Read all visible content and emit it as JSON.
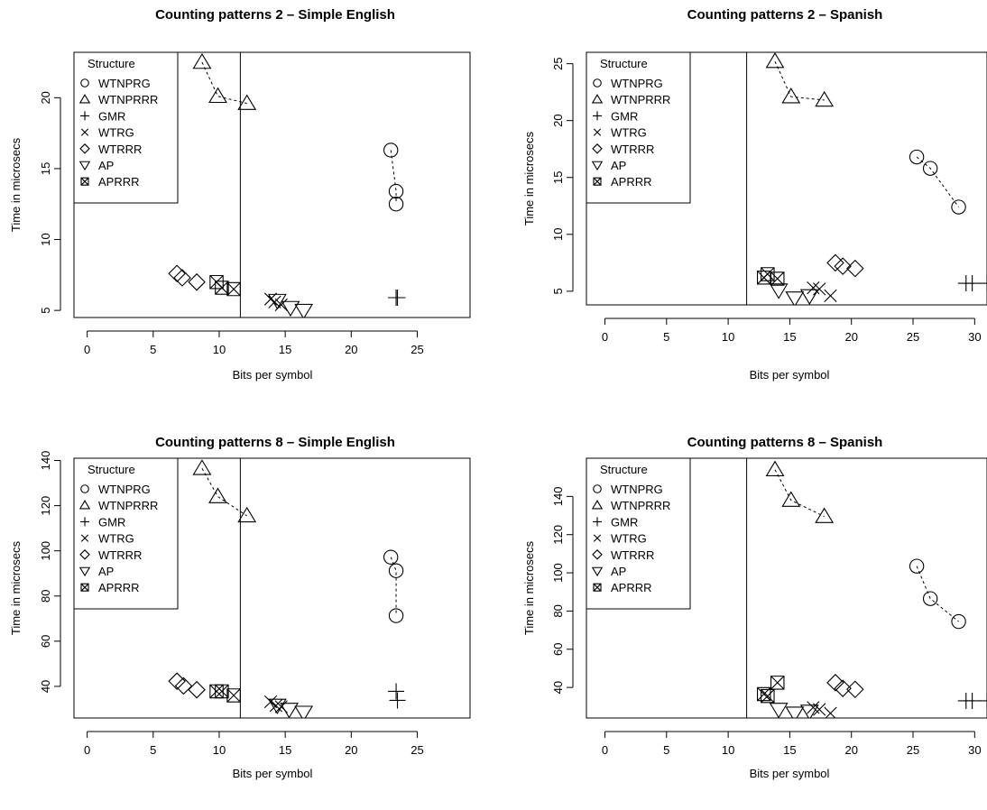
{
  "figure": {
    "background": "#ffffff",
    "marker_color": "#000000",
    "legend_title": "Structure",
    "legend_entries": [
      {
        "label": "WTNPRG",
        "symbol": "circle"
      },
      {
        "label": "WTNPRRR",
        "symbol": "triangle-up"
      },
      {
        "label": "GMR",
        "symbol": "plus"
      },
      {
        "label": "WTRG",
        "symbol": "cross"
      },
      {
        "label": "WTRRR",
        "symbol": "diamond"
      },
      {
        "label": "AP",
        "symbol": "triangle-down"
      },
      {
        "label": "APRRR",
        "symbol": "boxed-x"
      }
    ]
  },
  "chart_data": [
    {
      "type": "scatter",
      "title": "Counting patterns 2 – Simple English",
      "xlabel": "Bits per symbol",
      "ylabel": "Time in microsecs",
      "xlim": [
        -1,
        29
      ],
      "ylim": [
        4.5,
        23.2
      ],
      "xticks": [
        0,
        5,
        10,
        15,
        20,
        25
      ],
      "yticks": [
        5,
        10,
        15,
        20
      ],
      "vline": 11.6,
      "grid": false,
      "legend_position": "top-left",
      "series": [
        {
          "name": "WTNPRG",
          "symbol": "circle",
          "connected": true,
          "points": [
            [
              23.0,
              16.3
            ],
            [
              23.4,
              13.4
            ],
            [
              23.4,
              12.5
            ]
          ]
        },
        {
          "name": "WTNPRRR",
          "symbol": "triangle-up",
          "connected": true,
          "points": [
            [
              8.7,
              22.5
            ],
            [
              9.9,
              20.1
            ],
            [
              12.1,
              19.6
            ]
          ]
        },
        {
          "name": "GMR",
          "symbol": "plus",
          "connected": false,
          "points": [
            [
              23.4,
              5.9
            ],
            [
              23.5,
              5.9
            ]
          ]
        },
        {
          "name": "WTRG",
          "symbol": "cross",
          "connected": false,
          "points": [
            [
              13.9,
              5.8
            ],
            [
              14.2,
              5.6
            ],
            [
              14.7,
              5.4
            ]
          ]
        },
        {
          "name": "WTRRR",
          "symbol": "diamond",
          "connected": false,
          "points": [
            [
              6.8,
              7.6
            ],
            [
              7.2,
              7.3
            ],
            [
              8.3,
              7.0
            ]
          ]
        },
        {
          "name": "AP",
          "symbol": "triangle-down",
          "connected": false,
          "points": [
            [
              14.4,
              5.7
            ],
            [
              15.4,
              5.2
            ],
            [
              16.4,
              5.0
            ]
          ]
        },
        {
          "name": "APRRR",
          "symbol": "boxed-x",
          "connected": false,
          "points": [
            [
              9.8,
              7.0
            ],
            [
              10.2,
              6.6
            ],
            [
              11.1,
              6.5
            ]
          ]
        }
      ]
    },
    {
      "type": "scatter",
      "title": "Counting patterns 2 – Spanish",
      "xlabel": "Bits per symbol",
      "ylabel": "Time in microsecs",
      "xlim": [
        -1.5,
        31.0
      ],
      "ylim": [
        3.8,
        26.0
      ],
      "xticks": [
        0,
        5,
        10,
        15,
        20,
        25,
        30
      ],
      "yticks": [
        5,
        10,
        15,
        20,
        25
      ],
      "vline": 11.5,
      "grid": false,
      "legend_position": "top-left",
      "series": [
        {
          "name": "WTNPRG",
          "symbol": "circle",
          "connected": true,
          "points": [
            [
              25.3,
              16.8
            ],
            [
              26.4,
              15.8
            ],
            [
              28.7,
              12.4
            ]
          ]
        },
        {
          "name": "WTNPRRR",
          "symbol": "triangle-up",
          "connected": true,
          "points": [
            [
              13.8,
              25.2
            ],
            [
              15.1,
              22.1
            ],
            [
              17.8,
              21.8
            ]
          ]
        },
        {
          "name": "GMR",
          "symbol": "plus",
          "connected": false,
          "points": [
            [
              29.3,
              5.7
            ],
            [
              29.8,
              5.7
            ],
            [
              31.0,
              5.7
            ]
          ]
        },
        {
          "name": "WTRG",
          "symbol": "cross",
          "connected": false,
          "points": [
            [
              16.9,
              5.3
            ],
            [
              17.4,
              5.2
            ],
            [
              18.3,
              4.6
            ]
          ]
        },
        {
          "name": "WTRRR",
          "symbol": "diamond",
          "connected": false,
          "points": [
            [
              18.7,
              7.5
            ],
            [
              19.3,
              7.2
            ],
            [
              20.3,
              7.0
            ]
          ]
        },
        {
          "name": "AP",
          "symbol": "triangle-down",
          "connected": false,
          "points": [
            [
              14.1,
              5.1
            ],
            [
              15.4,
              4.4
            ],
            [
              16.6,
              4.6
            ]
          ]
        },
        {
          "name": "APRRR",
          "symbol": "boxed-x",
          "connected": false,
          "points": [
            [
              12.9,
              6.2
            ],
            [
              13.2,
              6.5
            ],
            [
              14.0,
              6.1
            ]
          ]
        }
      ]
    },
    {
      "type": "scatter",
      "title": "Counting patterns 8 – Simple English",
      "xlabel": "Bits per symbol",
      "ylabel": "Time in microsecs",
      "xlim": [
        -1,
        29
      ],
      "ylim": [
        26,
        141
      ],
      "xticks": [
        0,
        5,
        10,
        15,
        20,
        25
      ],
      "yticks": [
        40,
        60,
        80,
        100,
        120,
        140
      ],
      "vline": 11.6,
      "grid": false,
      "legend_position": "top-left",
      "series": [
        {
          "name": "WTNPRG",
          "symbol": "circle",
          "connected": true,
          "points": [
            [
              23.0,
              97.2
            ],
            [
              23.4,
              91.2
            ],
            [
              23.4,
              71.3
            ]
          ]
        },
        {
          "name": "WTNPRRR",
          "symbol": "triangle-up",
          "connected": true,
          "points": [
            [
              8.7,
              136.5
            ],
            [
              9.9,
              124.0
            ],
            [
              12.1,
              115.5
            ]
          ]
        },
        {
          "name": "GMR",
          "symbol": "plus",
          "connected": false,
          "points": [
            [
              23.4,
              37.8
            ],
            [
              23.5,
              33.8
            ]
          ]
        },
        {
          "name": "WTRG",
          "symbol": "cross",
          "connected": false,
          "points": [
            [
              13.9,
              33.2
            ],
            [
              14.3,
              31.5
            ],
            [
              14.7,
              31.0
            ]
          ]
        },
        {
          "name": "WTRRR",
          "symbol": "diamond",
          "connected": false,
          "points": [
            [
              6.8,
              42.3
            ],
            [
              7.3,
              40.2
            ],
            [
              8.3,
              38.5
            ]
          ]
        },
        {
          "name": "AP",
          "symbol": "triangle-down",
          "connected": false,
          "points": [
            [
              14.4,
              31.6
            ],
            [
              15.3,
              29.8
            ],
            [
              16.4,
              28.5
            ]
          ]
        },
        {
          "name": "APRRR",
          "symbol": "boxed-x",
          "connected": false,
          "points": [
            [
              9.8,
              37.8
            ],
            [
              10.2,
              37.8
            ],
            [
              11.1,
              36.0
            ]
          ]
        }
      ]
    },
    {
      "type": "scatter",
      "title": "Counting patterns 8 – Spanish",
      "xlabel": "Bits per symbol",
      "ylabel": "Time in microsecs",
      "xlim": [
        -1.5,
        31.0
      ],
      "ylim": [
        24,
        160
      ],
      "xticks": [
        0,
        5,
        10,
        15,
        20,
        25,
        30
      ],
      "yticks": [
        40,
        60,
        80,
        100,
        120,
        140
      ],
      "vline": 11.5,
      "grid": false,
      "legend_position": "top-left",
      "series": [
        {
          "name": "WTNPRG",
          "symbol": "circle",
          "connected": true,
          "points": [
            [
              25.3,
              103.5
            ],
            [
              26.4,
              86.5
            ],
            [
              28.7,
              74.5
            ]
          ]
        },
        {
          "name": "WTNPRRR",
          "symbol": "triangle-up",
          "connected": true,
          "points": [
            [
              13.8,
              154.0
            ],
            [
              15.1,
              138.0
            ],
            [
              17.8,
              129.5
            ]
          ]
        },
        {
          "name": "GMR",
          "symbol": "plus",
          "connected": false,
          "points": [
            [
              29.3,
              33.0
            ],
            [
              29.8,
              33.0
            ],
            [
              31.0,
              33.0
            ]
          ]
        },
        {
          "name": "WTRG",
          "symbol": "cross",
          "connected": false,
          "points": [
            [
              16.9,
              29.5
            ],
            [
              17.4,
              28.5
            ],
            [
              18.3,
              26.5
            ]
          ]
        },
        {
          "name": "WTRRR",
          "symbol": "diamond",
          "connected": false,
          "points": [
            [
              18.7,
              42.5
            ],
            [
              19.3,
              39.5
            ],
            [
              20.3,
              39.0
            ]
          ]
        },
        {
          "name": "AP",
          "symbol": "triangle-down",
          "connected": false,
          "points": [
            [
              14.1,
              28.5
            ],
            [
              15.4,
              26.5
            ],
            [
              16.6,
              27.5
            ]
          ]
        },
        {
          "name": "APRRR",
          "symbol": "boxed-x",
          "connected": false,
          "points": [
            [
              12.9,
              36.5
            ],
            [
              13.2,
              35.5
            ],
            [
              14.0,
              42.5
            ]
          ]
        }
      ]
    }
  ]
}
